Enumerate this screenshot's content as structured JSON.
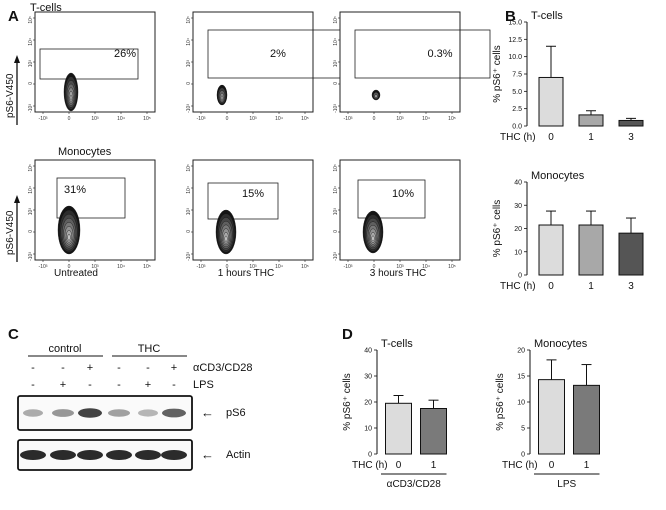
{
  "panel_letters": {
    "a": "A",
    "b": "B",
    "c": "C",
    "d": "D"
  },
  "panelA": {
    "row1_label": "T-cells",
    "row2_label": "Monocytes",
    "y_axis_label": "pS6-V450",
    "tick_labels_y": [
      "10⁵",
      "10⁴",
      "10³",
      "0",
      "-10³"
    ],
    "tick_labels_x": [
      "-10³",
      "0",
      "10³",
      "10⁴",
      "10⁵"
    ],
    "conditions": [
      "Untreated",
      "1 hours THC",
      "3 hours THC"
    ],
    "tcell_percents": [
      "26%",
      "2%",
      "0.3%"
    ],
    "mono_percents": [
      "31%",
      "15%",
      "10%"
    ]
  },
  "panelC": {
    "group_labels": [
      "control",
      "THC"
    ],
    "row_acd3_label": "αCD3/CD28",
    "row_lps_label": "LPS",
    "acd3_signs": [
      "-",
      "-",
      "+",
      "-",
      "-",
      "+"
    ],
    "lps_signs": [
      "-",
      "+",
      "-",
      "-",
      "+",
      "-"
    ],
    "blot_labels": [
      "pS6",
      "Actin"
    ],
    "arrow": "←"
  },
  "chart_data": [
    {
      "panel": "B-top",
      "type": "bar",
      "title": "T-cells",
      "ylabel": "% pS6⁺ cells",
      "xlabel": "THC (h)",
      "categories": [
        "0",
        "1",
        "3"
      ],
      "values": [
        7.0,
        1.6,
        0.8
      ],
      "errors": [
        4.5,
        0.6,
        0.3
      ],
      "ylim": [
        0,
        15
      ],
      "yticks": [
        "0.0",
        "2.5",
        "5.0",
        "7.5",
        "10.0",
        "12.5",
        "15.0"
      ],
      "colors": [
        "#dcdcdc",
        "#a8a8a8",
        "#555555"
      ]
    },
    {
      "panel": "B-bottom",
      "type": "bar",
      "title": "Monocytes",
      "ylabel": "% pS6⁺ cells",
      "xlabel": "THC (h)",
      "categories": [
        "0",
        "1",
        "3"
      ],
      "values": [
        21.5,
        21.5,
        18.0
      ],
      "errors": [
        6.0,
        6.0,
        6.5
      ],
      "ylim": [
        0,
        40
      ],
      "yticks": [
        "0",
        "10",
        "20",
        "30",
        "40"
      ],
      "colors": [
        "#dcdcdc",
        "#a8a8a8",
        "#555555"
      ]
    },
    {
      "panel": "D-left",
      "type": "bar",
      "title": "T-cells",
      "ylabel": "% pS6⁺ cells",
      "xlabel": "THC (h)",
      "categories": [
        "0",
        "1"
      ],
      "group_label": "αCD3/CD28",
      "values": [
        19.5,
        17.5
      ],
      "errors": [
        3.0,
        3.2
      ],
      "ylim": [
        0,
        40
      ],
      "yticks": [
        "0",
        "10",
        "20",
        "30",
        "40"
      ],
      "colors": [
        "#dcdcdc",
        "#7a7a7a"
      ]
    },
    {
      "panel": "D-right",
      "type": "bar",
      "title": "Monocytes",
      "ylabel": "% pS6⁺ cells",
      "xlabel": "THC (h)",
      "categories": [
        "0",
        "1"
      ],
      "group_label": "LPS",
      "values": [
        14.3,
        13.2
      ],
      "errors": [
        3.8,
        4.0
      ],
      "ylim": [
        0,
        20
      ],
      "yticks": [
        "0",
        "5",
        "10",
        "15",
        "20"
      ],
      "colors": [
        "#dcdcdc",
        "#7a7a7a"
      ]
    }
  ]
}
